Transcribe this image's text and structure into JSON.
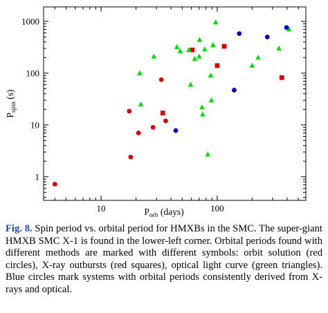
{
  "chart_data": {
    "type": "scatter",
    "xscale": "log",
    "yscale": "log",
    "xlim": [
      3.2,
      580
    ],
    "ylim": [
      0.35,
      1900
    ],
    "xlabel_main": "P",
    "xlabel_sub": "orb",
    "xlabel_unit": " (days)",
    "ylabel_main": "P",
    "ylabel_sub": "spin",
    "ylabel_unit": " (s)",
    "xticks": [
      {
        "value": 10,
        "label": "10"
      },
      {
        "value": 100,
        "label": "100"
      }
    ],
    "yticks": [
      {
        "value": 1,
        "label": "1"
      },
      {
        "value": 10,
        "label": "10"
      },
      {
        "value": 100,
        "label": "100"
      },
      {
        "value": 1000,
        "label": "1000"
      }
    ],
    "grid": false,
    "legend": "none",
    "series": [
      {
        "marker": "circle",
        "color": "#dd0000",
        "points": [
          [
            4.0,
            0.72
          ],
          [
            17.5,
            18.5
          ],
          [
            18.0,
            2.4
          ],
          [
            21.0,
            7.0
          ],
          [
            28.0,
            9.0
          ],
          [
            33.0,
            75
          ],
          [
            36.0,
            12.0
          ]
        ]
      },
      {
        "marker": "square",
        "color": "#dd0000",
        "points": [
          [
            34.0,
            17.0
          ],
          [
            61.0,
            280
          ],
          [
            100.0,
            140
          ],
          [
            115.0,
            330
          ],
          [
            360.0,
            82
          ]
        ]
      },
      {
        "marker": "triangle",
        "color": "#00dd00",
        "points": [
          [
            21.5,
            100
          ],
          [
            22.0,
            25
          ],
          [
            28.5,
            210
          ],
          [
            45.0,
            320
          ],
          [
            48.0,
            265
          ],
          [
            57.0,
            280
          ],
          [
            59.0,
            60
          ],
          [
            64.0,
            190
          ],
          [
            70.0,
            210
          ],
          [
            70.5,
            440
          ],
          [
            74.0,
            22
          ],
          [
            75.0,
            16
          ],
          [
            78.0,
            290
          ],
          [
            83.0,
            2.7
          ],
          [
            88.0,
            90
          ],
          [
            89.0,
            30
          ],
          [
            92.0,
            350
          ],
          [
            97.0,
            960
          ],
          [
            200.0,
            140
          ],
          [
            225.0,
            200
          ],
          [
            340.0,
            300
          ],
          [
            415.0,
            700
          ]
        ]
      },
      {
        "marker": "circle",
        "color": "#0000cc",
        "points": [
          [
            44.0,
            7.8
          ],
          [
            140.0,
            47
          ],
          [
            155.0,
            580
          ],
          [
            270.0,
            500
          ],
          [
            395.0,
            760
          ]
        ]
      }
    ]
  },
  "caption": {
    "label": "Fig. 8.",
    "text": " Spin period vs. orbital period for HMXBs in the SMC. The super-giant HMXB SMC X-1 is found in the lower-left corner. Orbital periods found with different methods are marked with different symbols: orbit solution (red circles), X-ray outbursts (red squares), optical light curve (green triangles). Blue circles mark systems with orbital periods consistently derived from X-rays and optical."
  }
}
